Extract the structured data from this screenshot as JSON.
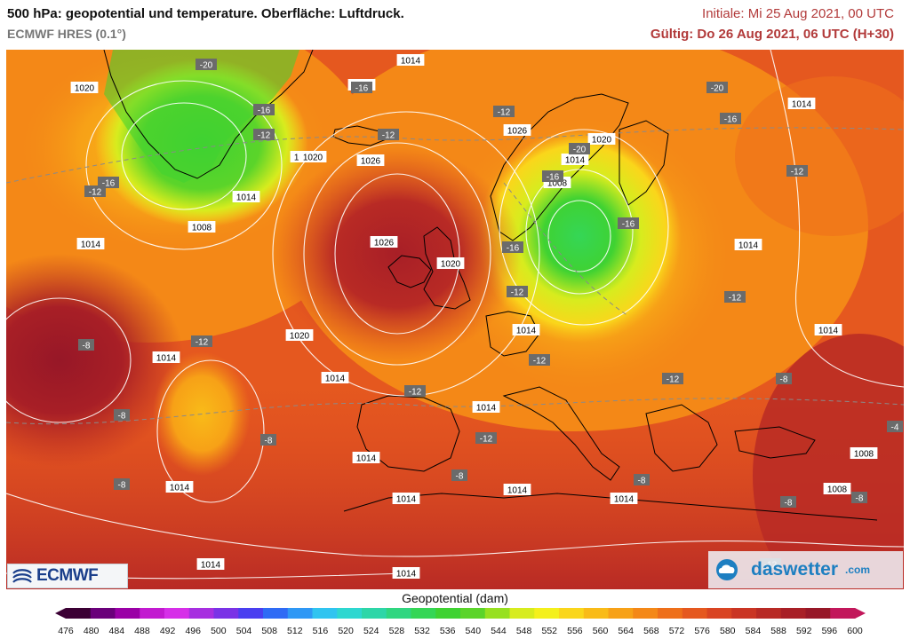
{
  "header": {
    "title": "500 hPa: geopotential und temperature. Oberfläche: Luftdruck.",
    "model": "ECMWF HRES (0.1°)",
    "initial": "Initiale: Mi 25 Aug 2021, 00 UTC",
    "valid": "Gültig: Do 26 Aug 2021, 06 UTC (H+30)"
  },
  "colors": {
    "isobar": "#ffffff",
    "temp_label_bg": "#6b6b6b",
    "pressure_label_bg": "#ffffff",
    "coast": "#000000",
    "header_red": "#b23a3a"
  },
  "colorbar": {
    "title": "Geopotential (dam)",
    "ticks": [
      "476",
      "480",
      "484",
      "488",
      "492",
      "496",
      "500",
      "504",
      "508",
      "512",
      "516",
      "520",
      "524",
      "528",
      "532",
      "536",
      "540",
      "544",
      "548",
      "552",
      "556",
      "560",
      "564",
      "568",
      "572",
      "576",
      "580",
      "584",
      "588",
      "592",
      "596",
      "600"
    ],
    "colors": [
      "#3b0034",
      "#6a007a",
      "#9a00a6",
      "#c21ad0",
      "#d62fe8",
      "#a72fe0",
      "#7a33e6",
      "#4a3ff0",
      "#2f6bf5",
      "#2f98f5",
      "#30c4f0",
      "#2ed7d0",
      "#2ed6a8",
      "#30d680",
      "#35d656",
      "#3fd232",
      "#5bd42a",
      "#97e020",
      "#d7ec1e",
      "#f4f01c",
      "#fad61b",
      "#f9bb18",
      "#f7a117",
      "#f48817",
      "#ee6f1a",
      "#e5581f",
      "#d94422",
      "#ca3524",
      "#b82a25",
      "#a81f26",
      "#971727",
      "#c2185b"
    ]
  },
  "logos": {
    "ecmwf": "ECMWF",
    "daswetter": "daswetter",
    "daswetter_suffix": ".com"
  },
  "pressure_labels": [
    "1014",
    "1020",
    "1014",
    "1020",
    "1014",
    "1008",
    "1026",
    "1026",
    "1020",
    "1020",
    "1014",
    "1026",
    "1020",
    "1014",
    "1008",
    "1014",
    "1014",
    "1020",
    "1014",
    "1014",
    "1014",
    "1014",
    "1014",
    "1014",
    "1014",
    "1014",
    "1014",
    "1014",
    "1008",
    "1008",
    "1014",
    "1014"
  ],
  "temp_labels": [
    "-20",
    "-16",
    "-16",
    "-12",
    "-16",
    "-12",
    "-12",
    "-12",
    "-16",
    "-20",
    "-16",
    "-20",
    "-12",
    "-16",
    "-16",
    "-12",
    "-12",
    "-12",
    "-8",
    "-12",
    "-12",
    "-12",
    "-12",
    "-8",
    "-8",
    "-8",
    "-8",
    "-8",
    "-8",
    "-4",
    "-8",
    "-8",
    "-12"
  ]
}
